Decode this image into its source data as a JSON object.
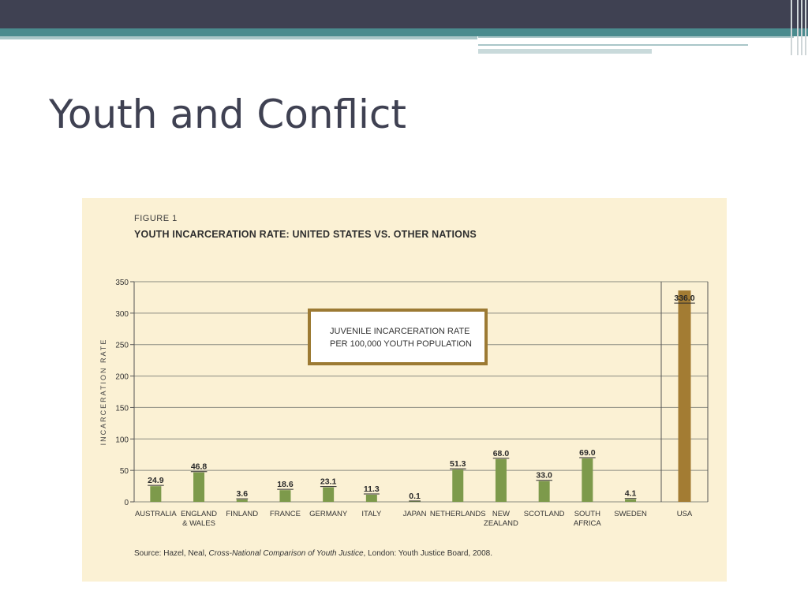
{
  "slide": {
    "title": "Youth and Conflict"
  },
  "figure": {
    "label": "FIGURE 1",
    "title": "YOUTH INCARCERATION RATE: UNITED STATES VS. OTHER NATIONS",
    "legend_box": [
      "JUVENILE INCARCERATION RATE",
      "PER 100,000 YOUTH POPULATION"
    ],
    "source_prefix": "Source: Hazel, Neal, ",
    "source_italic": "Cross-National Comparison of Youth Justice",
    "source_suffix": ", London: Youth Justice Board, 2008."
  },
  "colors": {
    "topbar": "#3f4152",
    "teal": "#4a8b8e",
    "figure_bg": "#fbf1d4",
    "bar_green": "#7d9a4b",
    "bar_usa": "#a37c33",
    "legend_border": "#9c7a33"
  },
  "chart_data": {
    "type": "bar",
    "ylabel": "INCARCERATION RATE",
    "ylim": [
      0,
      350
    ],
    "yticks": [
      0,
      50,
      100,
      150,
      200,
      250,
      300,
      350
    ],
    "grid": true,
    "categories": [
      [
        "AUSTRALIA"
      ],
      [
        "ENGLAND",
        "& WALES"
      ],
      [
        "FINLAND"
      ],
      [
        "FRANCE"
      ],
      [
        "GERMANY"
      ],
      [
        "ITALY"
      ],
      [
        "JAPAN"
      ],
      [
        "NETHERLANDS"
      ],
      [
        "NEW",
        "ZEALAND"
      ],
      [
        "SCOTLAND"
      ],
      [
        "SOUTH",
        "AFRICA"
      ],
      [
        "SWEDEN"
      ],
      [
        "USA"
      ]
    ],
    "values": [
      24.9,
      46.8,
      3.6,
      18.6,
      23.1,
      11.3,
      0.1,
      51.3,
      68.0,
      33.0,
      69.0,
      4.1,
      336.0
    ],
    "value_labels": [
      "24.9",
      "46.8",
      "3.6",
      "18.6",
      "23.1",
      "11.3",
      "0.1",
      "51.3",
      "68.0",
      "33.0",
      "69.0",
      "4.1",
      "336.0"
    ]
  }
}
